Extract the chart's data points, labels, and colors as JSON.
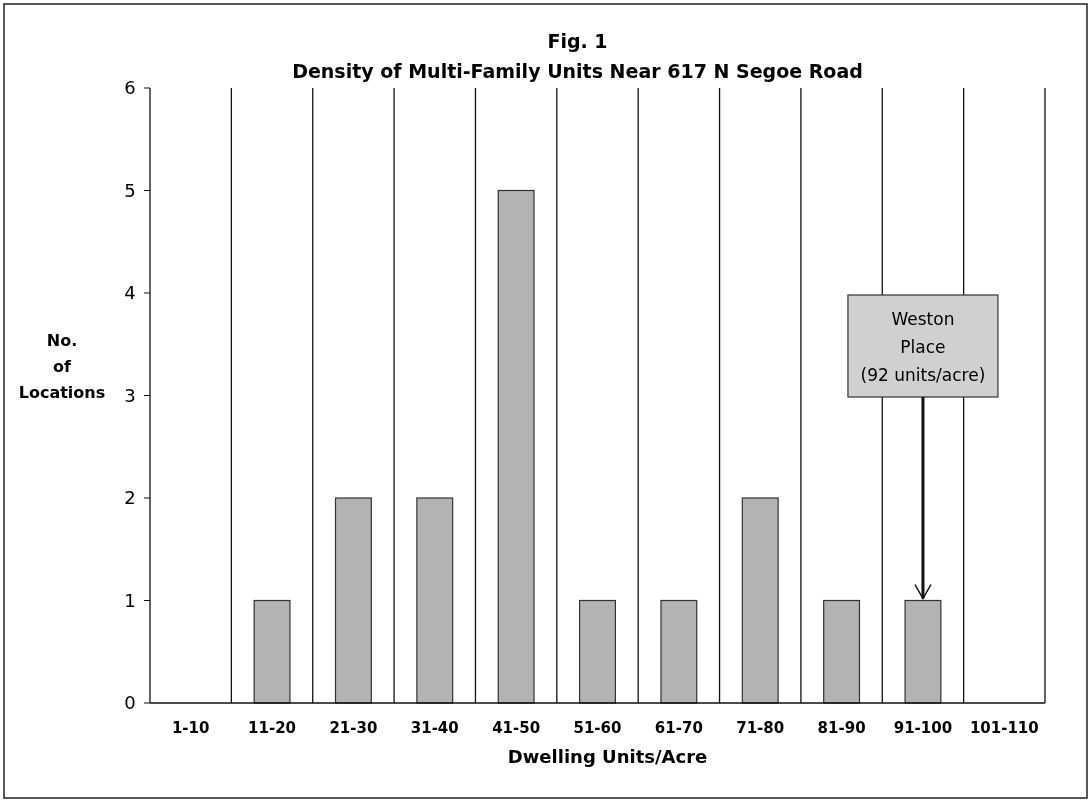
{
  "chart_data": {
    "type": "bar",
    "title": "Fig. 1",
    "subtitle": "Density of Multi-Family Units Near 617 N Segoe Road",
    "xlabel": "Dwelling Units/Acre",
    "ylabel": "No. of Locations",
    "categories": [
      "1-10",
      "11-20",
      "21-30",
      "31-40",
      "41-50",
      "51-60",
      "61-70",
      "71-80",
      "81-90",
      "91-100",
      "101-110"
    ],
    "values": [
      0,
      1,
      2,
      2,
      5,
      1,
      1,
      2,
      1,
      1,
      0
    ],
    "color": "#b3b3b3",
    "ylim": [
      0,
      6
    ],
    "yticks": [
      0,
      1,
      2,
      3,
      4,
      5,
      6
    ],
    "grid": "x",
    "annotations": [
      {
        "text": "Weston Place (92 units/acre)",
        "x": "91-100",
        "y": 1
      }
    ]
  }
}
